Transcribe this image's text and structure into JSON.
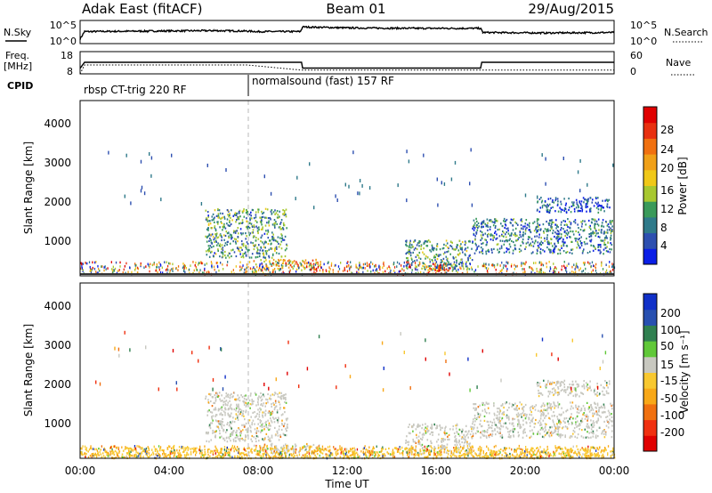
{
  "header": {
    "radar_title": "Adak East (fitACF)",
    "beam": "Beam 01",
    "date": "29/Aug/2015"
  },
  "top_panels": {
    "nsky_label": "N.Sky",
    "nsearch_label": "N.Search",
    "freq_label_1": "Freq.",
    "freq_label_2": "[MHz]",
    "nave_label": "Nave",
    "cpid_label": "CPID",
    "noise_ticks_left": [
      "10^5",
      "10^0"
    ],
    "noise_ticks_right": [
      "10^5",
      "10^0"
    ],
    "freq_ticks": [
      "18",
      "8"
    ],
    "nave_ticks": [
      "60",
      "0"
    ],
    "cpid_segments": [
      {
        "start_hr": 0,
        "end_hr": 7.5,
        "label": "rbsp CT-trig 220 RF"
      },
      {
        "start_hr": 7.5,
        "end_hr": 24,
        "label": "normalsound (fast) 157 RF"
      }
    ]
  },
  "chart_data": [
    {
      "type": "line",
      "title": "N.Sky / N.Search",
      "x_unit": "hour",
      "x": [
        0,
        0.2,
        3,
        6,
        7.5,
        8,
        9.9,
        10,
        12,
        15,
        18,
        18.1,
        21,
        24
      ],
      "series": [
        {
          "name": "N.Sky",
          "values": [
            1.0,
            2.6,
            2.7,
            2.8,
            2.7,
            2.6,
            2.6,
            3.6,
            3.4,
            3.3,
            3.3,
            2.4,
            2.3,
            2.4
          ]
        }
      ],
      "ylim": [
        0,
        5
      ]
    },
    {
      "type": "line",
      "title": "Freq. / Nave",
      "x_unit": "hour",
      "x": [
        0,
        0.2,
        7.5,
        9.95,
        10,
        18,
        18.05,
        24
      ],
      "series": [
        {
          "name": "Freq.",
          "values": [
            10.5,
            13.2,
            13.2,
            13.2,
            10.6,
            10.6,
            13.2,
            13.2
          ]
        },
        {
          "name": "Nave",
          "values": [
            0,
            24,
            24,
            10,
            10,
            10,
            10,
            10
          ]
        }
      ],
      "ylim": [
        8,
        18
      ]
    },
    {
      "type": "heatmap",
      "title": "Power [dB]",
      "xlabel": "",
      "ylabel": "Slant Range [km]",
      "x_ticks": [],
      "y_ticks": [
        "1000",
        "2000",
        "3000",
        "4000"
      ],
      "ylim": [
        180,
        4600
      ],
      "xlim": [
        0,
        24
      ],
      "colorbar": {
        "label": "Power [dB]",
        "ticks": [
          "4",
          "8",
          "12",
          "16",
          "20",
          "24",
          "28"
        ],
        "colors": [
          "#0a1ee6",
          "#2d4fb0",
          "#2f7a8a",
          "#3a9a5a",
          "#a8c830",
          "#f0c818",
          "#f0a018",
          "#f07010",
          "#e83010",
          "#e00000"
        ]
      },
      "regions": [
        {
          "t0": 5.6,
          "t1": 9.3,
          "r0": 600,
          "r1": 1850,
          "value": 10
        },
        {
          "t0": 7.7,
          "t1": 10.8,
          "r0": 300,
          "r1": 550,
          "value": 20
        },
        {
          "t0": 14.6,
          "t1": 17.6,
          "r0": 300,
          "r1": 1050,
          "value": 10
        },
        {
          "t0": 15.6,
          "t1": 16.6,
          "r0": 200,
          "r1": 450,
          "value": 24
        },
        {
          "t0": 17.6,
          "t1": 23.9,
          "r0": 700,
          "r1": 1600,
          "value": 8
        },
        {
          "t0": 20.5,
          "t1": 23.8,
          "r0": 1750,
          "r1": 2150,
          "value": 5
        }
      ]
    },
    {
      "type": "heatmap",
      "title": "Velocity [m s-1]",
      "xlabel": "Time UT",
      "ylabel": "Slant Range [km]",
      "x_ticks": [
        "00:00",
        "04:00",
        "08:00",
        "12:00",
        "16:00",
        "20:00",
        "00:00"
      ],
      "y_ticks": [
        "1000",
        "2000",
        "3000",
        "4000"
      ],
      "ylim": [
        180,
        4600
      ],
      "xlim": [
        0,
        24
      ],
      "colorbar": {
        "label": "Velocity [m s-1]",
        "ticks": [
          "-200",
          "-100",
          "-50",
          "-15",
          "15",
          "50",
          "100",
          "200"
        ],
        "colors": [
          "#e00000",
          "#f03010",
          "#f07010",
          "#f8a818",
          "#f8c830",
          "#c8c8c0",
          "#60c838",
          "#308050",
          "#2850b0",
          "#1030c8"
        ]
      },
      "regions": [
        {
          "t0": 5.6,
          "t1": 9.3,
          "r0": 600,
          "r1": 1850,
          "value": 0
        },
        {
          "t0": 7.7,
          "t1": 10.8,
          "r0": 300,
          "r1": 550,
          "value": 20
        },
        {
          "t0": 14.6,
          "t1": 17.6,
          "r0": 300,
          "r1": 1050,
          "value": 0
        },
        {
          "t0": 0,
          "t1": 24,
          "r0": 180,
          "r1": 450,
          "value": -30
        },
        {
          "t0": 17.6,
          "t1": 23.9,
          "r0": 700,
          "r1": 1600,
          "value": 0
        },
        {
          "t0": 20.5,
          "t1": 23.8,
          "r0": 1750,
          "r1": 2150,
          "value": 0
        }
      ]
    }
  ],
  "power_panel": {
    "ylabel": "Slant Range [km]",
    "cbar_label": "Power [dB]",
    "cbar_ticks": [
      "4",
      "8",
      "12",
      "16",
      "20",
      "24",
      "28"
    ],
    "y_ticks": [
      "1000",
      "2000",
      "3000",
      "4000"
    ]
  },
  "velocity_panel": {
    "ylabel": "Slant Range [km]",
    "cbar_label": "Velocity [m s⁻¹]",
    "cbar_ticks": [
      "-200",
      "-100",
      "-50",
      "-15",
      "15",
      "50",
      "100",
      "200"
    ],
    "y_ticks": [
      "1000",
      "2000",
      "3000",
      "4000"
    ]
  },
  "x_axis": {
    "label": "Time UT",
    "ticks": [
      "00:00",
      "04:00",
      "08:00",
      "12:00",
      "16:00",
      "20:00",
      "00:00"
    ]
  }
}
